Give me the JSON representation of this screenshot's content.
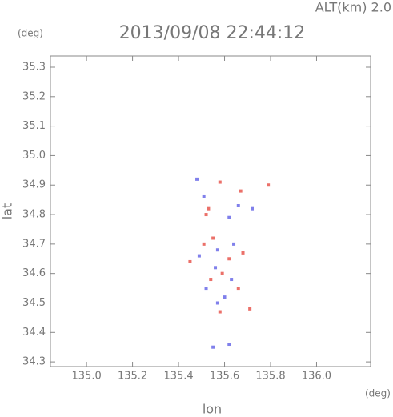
{
  "chart_data": {
    "type": "scatter",
    "title": "2013/09/08 22:44:12",
    "annotation": "ALT(km) 2.0",
    "y_unit": "(deg)",
    "x_unit": "(deg)",
    "x_label": "lon",
    "y_label": "lat",
    "xlim": [
      134.843,
      136.235
    ],
    "ylim": [
      34.284,
      35.338
    ],
    "xticks": [
      {
        "value": 135.0,
        "label": "135.0"
      },
      135.2,
      135.4,
      135.6,
      135.8,
      {
        "value": 136.0,
        "label": "136.0"
      }
    ],
    "yticks": [
      35.3,
      35.2,
      35.1,
      {
        "value": 35.0,
        "label": "35.0"
      },
      34.9,
      34.8,
      34.7,
      34.6,
      34.5,
      34.4,
      34.3
    ],
    "series": [
      {
        "color": "#e8574f",
        "x": [
          135.53,
          135.52,
          135.58,
          135.67,
          135.79,
          135.55,
          135.51,
          135.62,
          135.68,
          135.45,
          135.59,
          135.54,
          135.66,
          135.71,
          135.58
        ],
        "y": [
          34.82,
          34.8,
          34.91,
          34.88,
          34.9,
          34.72,
          34.7,
          34.65,
          34.67,
          34.64,
          34.6,
          34.58,
          34.55,
          34.48,
          34.47
        ]
      },
      {
        "color": "#6a6ae8",
        "x": [
          135.51,
          135.62,
          135.66,
          135.72,
          135.57,
          135.64,
          135.49,
          135.56,
          135.63,
          135.52,
          135.6,
          135.57,
          135.62,
          135.55,
          135.48
        ],
        "y": [
          34.86,
          34.79,
          34.83,
          34.82,
          34.68,
          34.7,
          34.66,
          34.62,
          34.58,
          34.55,
          34.52,
          34.5,
          34.36,
          34.35,
          34.92
        ]
      }
    ]
  }
}
